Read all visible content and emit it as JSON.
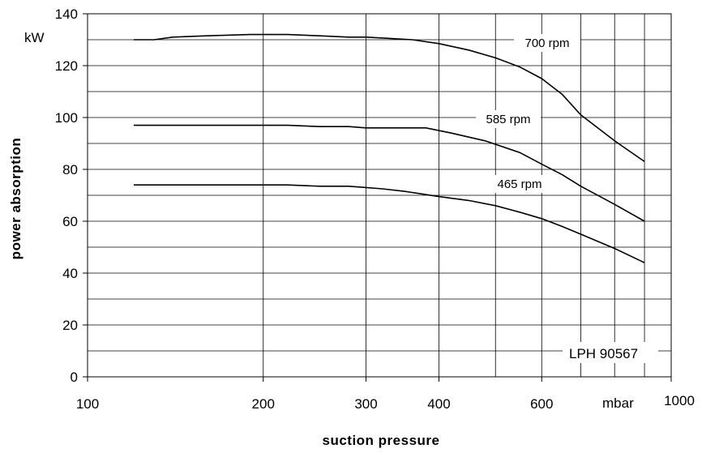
{
  "chart_data": {
    "type": "line",
    "xscale": "log",
    "xlim": [
      100,
      1000
    ],
    "ylim": [
      0,
      140
    ],
    "xticks": [
      100,
      200,
      300,
      400,
      600,
      1000
    ],
    "xtick_labels": [
      "100",
      "200",
      "300",
      "400",
      "600",
      "1000"
    ],
    "x_gridlines": [
      200,
      300,
      400,
      500,
      600,
      700,
      800,
      900
    ],
    "yticks": [
      0,
      20,
      40,
      60,
      80,
      100,
      120,
      140
    ],
    "ytick_labels": [
      "0",
      "20",
      "40",
      "60",
      "80",
      "100",
      "120",
      "140"
    ],
    "y_gridlines": [
      10,
      20,
      30,
      40,
      50,
      60,
      70,
      80,
      90,
      100,
      110,
      120,
      130
    ],
    "x_unit": "mbar",
    "y_unit": "kW",
    "xlabel": "suction pressure",
    "ylabel": "power absorption",
    "annotation": "LPH 90567",
    "grid": true,
    "series": [
      {
        "name": "700 rpm",
        "x": [
          120,
          130,
          140,
          160,
          190,
          220,
          250,
          280,
          300,
          330,
          360,
          400,
          450,
          500,
          550,
          600,
          650,
          700,
          800,
          900
        ],
        "y": [
          130,
          130,
          131,
          131.5,
          132,
          132,
          131.5,
          131,
          131,
          130.5,
          130,
          128.5,
          126,
          123,
          119.5,
          115,
          109,
          101,
          91,
          83
        ]
      },
      {
        "name": "585 rpm",
        "x": [
          120,
          150,
          200,
          220,
          250,
          280,
          300,
          350,
          380,
          420,
          480,
          550,
          600,
          650,
          700,
          800,
          900
        ],
        "y": [
          97,
          97,
          97,
          97,
          96.5,
          96.5,
          96,
          96,
          96,
          94,
          91,
          86.5,
          82,
          78,
          73.5,
          66.5,
          60
        ]
      },
      {
        "name": "465 rpm",
        "x": [
          120,
          200,
          220,
          250,
          280,
          300,
          320,
          350,
          400,
          450,
          500,
          550,
          600,
          650,
          700,
          800,
          900
        ],
        "y": [
          74,
          74,
          74,
          73.5,
          73.5,
          73,
          72.5,
          71.5,
          69.5,
          68,
          66,
          63.5,
          61,
          58,
          55,
          49.5,
          44
        ]
      }
    ]
  }
}
